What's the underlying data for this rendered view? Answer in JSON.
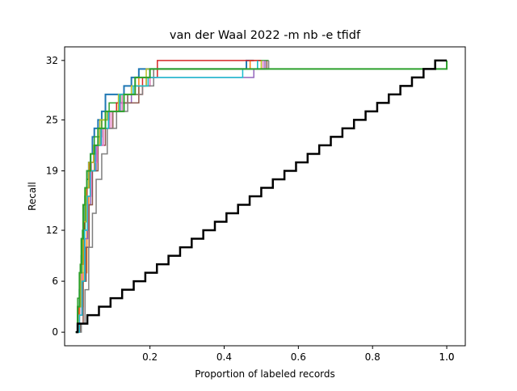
{
  "chart_data": {
    "type": "line",
    "title": "van der Waal 2022 -m nb -e tfidf",
    "xlabel": "Proportion of labeled records",
    "ylabel": "Recall",
    "xlim": [
      -0.03,
      1.05
    ],
    "ylim": [
      -1.6,
      33.6
    ],
    "xticks": [
      0.2,
      0.4,
      0.6,
      0.8,
      1.0
    ],
    "xtick_labels": [
      "0.2",
      "0.4",
      "0.6",
      "0.8",
      "1.0"
    ],
    "yticks": [
      0,
      6,
      12,
      19,
      25,
      32
    ],
    "ytick_labels": [
      "0",
      "6",
      "12",
      "19",
      "25",
      "32"
    ],
    "extra_label": {
      "x": 1.0,
      "text": "1.0"
    },
    "grid": false,
    "legend": false,
    "series": [
      {
        "color": "#1f77b4",
        "lw": 2,
        "x": [
          0.0,
          0.005,
          0.01,
          0.015,
          0.02,
          0.025,
          0.03,
          0.035,
          0.04,
          0.045,
          0.05,
          0.06,
          0.07,
          0.08,
          0.1,
          0.13,
          0.15,
          0.17,
          0.2,
          0.22,
          0.46,
          0.48
        ],
        "y": [
          0,
          2,
          5,
          9,
          13,
          16,
          18,
          20,
          21,
          23,
          24,
          25,
          26,
          28,
          28,
          29,
          30,
          31,
          31,
          31,
          32,
          32
        ]
      },
      {
        "color": "#ff7f0e",
        "lw": 1.5,
        "x": [
          0.0,
          0.01,
          0.02,
          0.03,
          0.035,
          0.04,
          0.05,
          0.06,
          0.07,
          0.09,
          0.11,
          0.14,
          0.17,
          0.21,
          0.47,
          0.5
        ],
        "y": [
          0,
          3,
          7,
          12,
          16,
          19,
          21,
          23,
          25,
          26,
          27,
          28,
          30,
          31,
          32,
          32
        ]
      },
      {
        "color": "#2ca02c",
        "lw": 1.5,
        "x": [
          0.0,
          0.005,
          0.012,
          0.018,
          0.025,
          0.03,
          0.04,
          0.05,
          0.07,
          0.09,
          0.12,
          0.16,
          0.2,
          0.49,
          0.52
        ],
        "y": [
          0,
          4,
          8,
          12,
          15,
          18,
          21,
          23,
          25,
          27,
          28,
          30,
          31,
          32,
          32
        ]
      },
      {
        "color": "#d62728",
        "lw": 1.5,
        "x": [
          0.0,
          0.008,
          0.015,
          0.022,
          0.03,
          0.038,
          0.05,
          0.065,
          0.08,
          0.11,
          0.14,
          0.18,
          0.22,
          0.5
        ],
        "y": [
          0,
          3,
          8,
          13,
          17,
          20,
          22,
          24,
          26,
          27,
          28,
          30,
          32,
          32
        ]
      },
      {
        "color": "#9467bd",
        "lw": 1.5,
        "x": [
          0.0,
          0.01,
          0.018,
          0.025,
          0.032,
          0.04,
          0.055,
          0.07,
          0.09,
          0.12,
          0.15,
          0.19,
          0.48,
          0.51
        ],
        "y": [
          0,
          2,
          6,
          11,
          15,
          19,
          22,
          24,
          26,
          27,
          29,
          30,
          31,
          32
        ]
      },
      {
        "color": "#8c564b",
        "lw": 1.5,
        "x": [
          0.0,
          0.012,
          0.02,
          0.028,
          0.036,
          0.045,
          0.06,
          0.08,
          0.1,
          0.13,
          0.17,
          0.2,
          0.49,
          0.515
        ],
        "y": [
          0,
          1,
          6,
          10,
          15,
          19,
          22,
          24,
          26,
          27,
          29,
          31,
          31,
          32
        ]
      },
      {
        "color": "#e377c2",
        "lw": 1.5,
        "x": [
          0.0,
          0.008,
          0.016,
          0.024,
          0.032,
          0.042,
          0.058,
          0.075,
          0.095,
          0.125,
          0.16,
          0.2,
          0.47,
          0.505
        ],
        "y": [
          0,
          2,
          7,
          12,
          16,
          20,
          22,
          24,
          26,
          28,
          29,
          31,
          31,
          32
        ]
      },
      {
        "color": "#7f7f7f",
        "lw": 1.5,
        "x": [
          0.0,
          0.015,
          0.025,
          0.035,
          0.045,
          0.055,
          0.07,
          0.085,
          0.11,
          0.14,
          0.18,
          0.21,
          0.51,
          0.52
        ],
        "y": [
          0,
          1,
          5,
          10,
          14,
          18,
          21,
          24,
          26,
          28,
          29,
          31,
          31,
          32
        ]
      },
      {
        "color": "#bcbd22",
        "lw": 1.5,
        "x": [
          0.0,
          0.006,
          0.013,
          0.02,
          0.028,
          0.035,
          0.048,
          0.065,
          0.085,
          0.115,
          0.15,
          0.19,
          0.46,
          0.5
        ],
        "y": [
          0,
          3,
          7,
          13,
          17,
          20,
          22,
          25,
          26,
          28,
          29,
          31,
          31,
          32
        ]
      },
      {
        "color": "#17becf",
        "lw": 1.5,
        "x": [
          0.0,
          0.01,
          0.017,
          0.024,
          0.031,
          0.039,
          0.052,
          0.068,
          0.088,
          0.118,
          0.155,
          0.195,
          0.45,
          0.49
        ],
        "y": [
          0,
          2,
          6,
          12,
          16,
          19,
          22,
          24,
          26,
          28,
          29,
          30,
          31,
          32
        ]
      },
      {
        "color": "#2ca02c",
        "lw": 2,
        "x": [
          0.0,
          0.005,
          0.01,
          0.015,
          0.02,
          0.025,
          0.03,
          0.04,
          0.05,
          0.06,
          0.08,
          0.1,
          0.13,
          0.16,
          0.2,
          0.22,
          1.0
        ],
        "y": [
          0,
          3,
          7,
          11,
          15,
          17,
          19,
          21,
          22,
          24,
          26,
          26,
          28,
          30,
          31,
          31,
          32
        ]
      },
      {
        "color": "#000000",
        "lw": 2.5,
        "type": "random-baseline",
        "x": [
          0.0,
          0.005,
          0.03125,
          0.0625,
          0.09375,
          0.125,
          0.15625,
          0.1875,
          0.21875,
          0.25,
          0.28125,
          0.3125,
          0.34375,
          0.375,
          0.40625,
          0.4375,
          0.46875,
          0.5,
          0.53125,
          0.5625,
          0.59375,
          0.625,
          0.65625,
          0.6875,
          0.71875,
          0.75,
          0.78125,
          0.8125,
          0.84375,
          0.875,
          0.90625,
          0.9375,
          0.96875,
          1.0
        ],
        "y": [
          0,
          1,
          2,
          3,
          4,
          5,
          6,
          7,
          8,
          9,
          10,
          11,
          12,
          13,
          14,
          15,
          16,
          17,
          18,
          19,
          20,
          21,
          22,
          23,
          24,
          25,
          26,
          27,
          28,
          29,
          30,
          31,
          32,
          32
        ]
      }
    ]
  }
}
